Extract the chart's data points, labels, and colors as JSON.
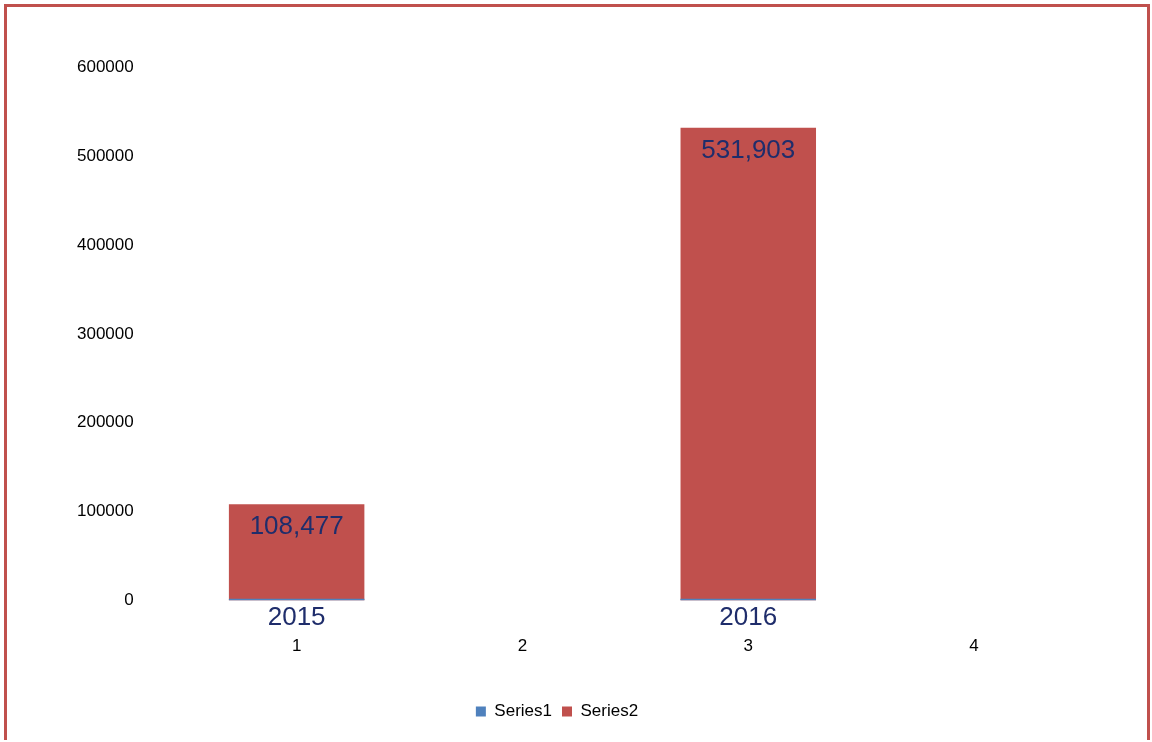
{
  "chart_data": {
    "type": "bar",
    "categories": [
      "1",
      "2",
      "3",
      "4"
    ],
    "series": [
      {
        "name": "Series1",
        "color": "#4f81bd",
        "values": [
          2015,
          null,
          2016,
          null
        ],
        "value_labels": [
          "2015",
          null,
          "2016",
          null
        ]
      },
      {
        "name": "Series2",
        "color": "#c0504d",
        "values": [
          108477,
          null,
          531903,
          null
        ],
        "value_labels": [
          "108,477",
          null,
          "531,903",
          null
        ]
      }
    ],
    "ylim": [
      0,
      600000
    ],
    "yticks": [
      0,
      100000,
      200000,
      300000,
      400000,
      500000,
      600000
    ],
    "grid": false,
    "legend": "bottom"
  }
}
